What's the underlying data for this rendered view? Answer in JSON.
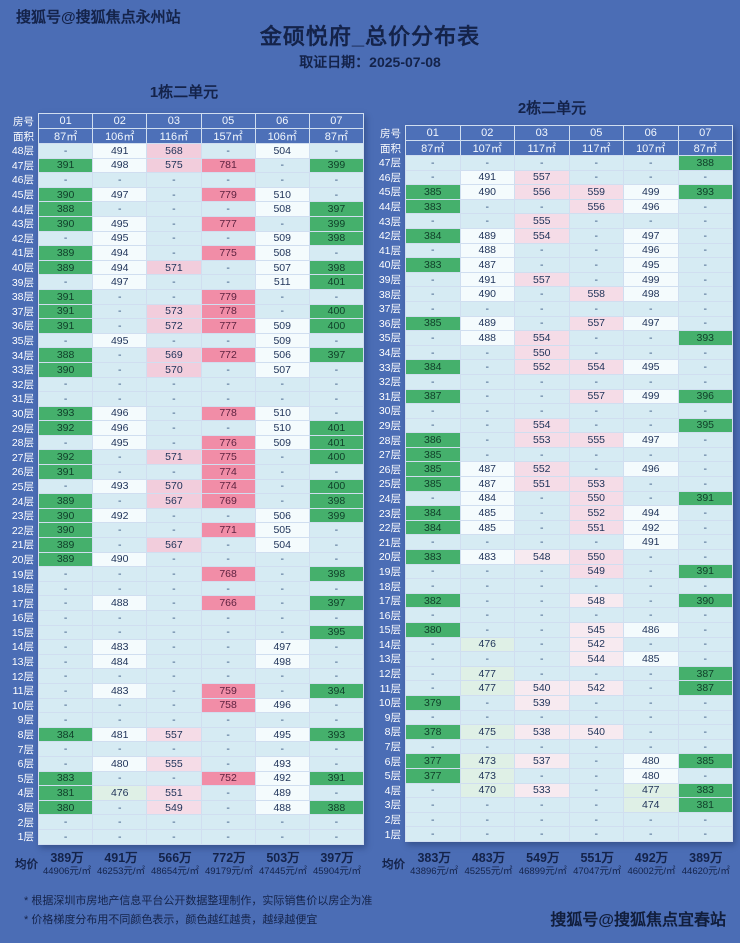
{
  "page": {
    "watermark_top": "搜狐号@搜狐焦点永州站",
    "watermark_bottom": "搜狐号@搜狐焦点宜春站",
    "title": "金硕悦府_总价分布表",
    "date_line": "取证日期：2025-07-08",
    "footnotes": [
      "* 根据深圳市房地产信息平台公开数据整理制作，实际销售价以房企为准",
      "* 价格梯度分布用不同颜色表示，颜色越红越贵，越绿越便宜"
    ]
  },
  "colors": {
    "page_bg": "#4b6db5",
    "text_dark": "#14234a",
    "cell_empty": "#d6ebf3",
    "cell_green": "#45b06c",
    "cell_lightgreen": "#dff0e6",
    "cell_white": "#f4fbfd",
    "cell_pink_pale": "#f7eaf0",
    "cell_pink_light": "#f5dce7",
    "cell_pink_mid": "#f2cddc",
    "cell_rose": "#f18da7"
  },
  "chart_data": [
    {
      "type": "table",
      "title": "1栋二单元",
      "corner_labels": {
        "room": "房号",
        "area": "面积",
        "avg": "均价"
      },
      "rooms": [
        "01",
        "02",
        "03",
        "05",
        "06",
        "07"
      ],
      "areas": [
        "87㎡",
        "106㎡",
        "116㎡",
        "157㎡",
        "106㎡",
        "87㎡"
      ],
      "unit_note": "values are total price in 万元; \"-\" means no data",
      "floors": [
        "48层",
        "47层",
        "46层",
        "45层",
        "44层",
        "43层",
        "42层",
        "41层",
        "40层",
        "39层",
        "38层",
        "37层",
        "36层",
        "35层",
        "34层",
        "33层",
        "32层",
        "31层",
        "30层",
        "29层",
        "28层",
        "27层",
        "26层",
        "25层",
        "24层",
        "23层",
        "22层",
        "21层",
        "20层",
        "19层",
        "18层",
        "17层",
        "16层",
        "15层",
        "14层",
        "13层",
        "12层",
        "11层",
        "10层",
        "9层",
        "8层",
        "7层",
        "6层",
        "5层",
        "4层",
        "3层",
        "2层",
        "1层"
      ],
      "rows": [
        [
          "-",
          "491",
          "568",
          "-",
          "504",
          "-"
        ],
        [
          "391",
          "498",
          "575",
          "781",
          "-",
          "399"
        ],
        [
          "-",
          "-",
          "-",
          "-",
          "-",
          "-"
        ],
        [
          "390",
          "497",
          "-",
          "779",
          "510",
          "-"
        ],
        [
          "388",
          "-",
          "-",
          "-",
          "508",
          "397"
        ],
        [
          "390",
          "495",
          "-",
          "777",
          "-",
          "399"
        ],
        [
          "-",
          "495",
          "-",
          "-",
          "509",
          "398"
        ],
        [
          "389",
          "494",
          "-",
          "775",
          "508",
          "-"
        ],
        [
          "389",
          "494",
          "571",
          "-",
          "507",
          "398"
        ],
        [
          "-",
          "497",
          "-",
          "-",
          "511",
          "401"
        ],
        [
          "391",
          "-",
          "-",
          "779",
          "-",
          "-"
        ],
        [
          "391",
          "-",
          "573",
          "778",
          "-",
          "400"
        ],
        [
          "391",
          "-",
          "572",
          "777",
          "509",
          "400"
        ],
        [
          "-",
          "495",
          "-",
          "-",
          "509",
          "-"
        ],
        [
          "388",
          "-",
          "569",
          "772",
          "506",
          "397"
        ],
        [
          "390",
          "-",
          "570",
          "-",
          "507",
          "-"
        ],
        [
          "-",
          "-",
          "-",
          "-",
          "-",
          "-"
        ],
        [
          "-",
          "-",
          "-",
          "-",
          "-",
          "-"
        ],
        [
          "393",
          "496",
          "-",
          "778",
          "510",
          "-"
        ],
        [
          "392",
          "496",
          "-",
          "-",
          "510",
          "401"
        ],
        [
          "-",
          "495",
          "-",
          "776",
          "509",
          "401"
        ],
        [
          "392",
          "-",
          "571",
          "775",
          "-",
          "400"
        ],
        [
          "391",
          "-",
          "-",
          "774",
          "-",
          "-"
        ],
        [
          "-",
          "493",
          "570",
          "774",
          "-",
          "400"
        ],
        [
          "389",
          "-",
          "567",
          "769",
          "-",
          "398"
        ],
        [
          "390",
          "492",
          "-",
          "-",
          "506",
          "399"
        ],
        [
          "390",
          "-",
          "-",
          "771",
          "505",
          "-"
        ],
        [
          "389",
          "-",
          "567",
          "-",
          "504",
          "-"
        ],
        [
          "389",
          "490",
          "-",
          "-",
          "-",
          "-"
        ],
        [
          "-",
          "-",
          "-",
          "768",
          "-",
          "398"
        ],
        [
          "-",
          "-",
          "-",
          "-",
          "-",
          "-"
        ],
        [
          "-",
          "488",
          "-",
          "766",
          "-",
          "397"
        ],
        [
          "-",
          "-",
          "-",
          "-",
          "-",
          "-"
        ],
        [
          "-",
          "-",
          "-",
          "-",
          "-",
          "395"
        ],
        [
          "-",
          "483",
          "-",
          "-",
          "497",
          "-"
        ],
        [
          "-",
          "484",
          "-",
          "-",
          "498",
          "-"
        ],
        [
          "-",
          "-",
          "-",
          "-",
          "-",
          "-"
        ],
        [
          "-",
          "483",
          "-",
          "759",
          "-",
          "394"
        ],
        [
          "-",
          "-",
          "-",
          "758",
          "496",
          "-"
        ],
        [
          "-",
          "-",
          "-",
          "-",
          "-",
          "-"
        ],
        [
          "384",
          "481",
          "557",
          "-",
          "495",
          "393"
        ],
        [
          "-",
          "-",
          "-",
          "-",
          "-",
          "-"
        ],
        [
          "-",
          "480",
          "555",
          "-",
          "493",
          "-"
        ],
        [
          "383",
          "-",
          "-",
          "752",
          "492",
          "391"
        ],
        [
          "381",
          "476",
          "551",
          "-",
          "489",
          "-"
        ],
        [
          "380",
          "-",
          "549",
          "-",
          "488",
          "388"
        ],
        [
          "-",
          "-",
          "-",
          "-",
          "-",
          "-"
        ],
        [
          "-",
          "-",
          "-",
          "-",
          "-",
          "-"
        ]
      ],
      "avg_wan": [
        "389万",
        "491万",
        "566万",
        "772万",
        "503万",
        "397万"
      ],
      "avg_unit": [
        "44906元/㎡",
        "46253元/㎡",
        "48654元/㎡",
        "49179元/㎡",
        "47445元/㎡",
        "45904元/㎡"
      ]
    },
    {
      "type": "table",
      "title": "2栋二单元",
      "corner_labels": {
        "room": "房号",
        "area": "面积",
        "avg": "均价"
      },
      "rooms": [
        "01",
        "02",
        "03",
        "05",
        "06",
        "07"
      ],
      "areas": [
        "87㎡",
        "107㎡",
        "117㎡",
        "117㎡",
        "107㎡",
        "87㎡"
      ],
      "unit_note": "values are total price in 万元; \"-\" means no data",
      "floors": [
        "47层",
        "46层",
        "45层",
        "44层",
        "43层",
        "42层",
        "41层",
        "40层",
        "39层",
        "38层",
        "37层",
        "36层",
        "35层",
        "34层",
        "33层",
        "32层",
        "31层",
        "30层",
        "29层",
        "28层",
        "27层",
        "26层",
        "25层",
        "24层",
        "23层",
        "22层",
        "21层",
        "20层",
        "19层",
        "18层",
        "17层",
        "16层",
        "15层",
        "14层",
        "13层",
        "12层",
        "11层",
        "10层",
        "9层",
        "8层",
        "7层",
        "6层",
        "5层",
        "4层",
        "3层",
        "2层",
        "1层"
      ],
      "rows": [
        [
          "-",
          "-",
          "-",
          "-",
          "-",
          "388"
        ],
        [
          "-",
          "491",
          "557",
          "-",
          "-",
          "-"
        ],
        [
          "385",
          "490",
          "556",
          "559",
          "499",
          "393"
        ],
        [
          "383",
          "-",
          "-",
          "556",
          "496",
          "-"
        ],
        [
          "-",
          "-",
          "555",
          "-",
          "-",
          "-"
        ],
        [
          "384",
          "489",
          "554",
          "-",
          "497",
          "-"
        ],
        [
          "-",
          "488",
          "-",
          "-",
          "496",
          "-"
        ],
        [
          "383",
          "487",
          "-",
          "-",
          "495",
          "-"
        ],
        [
          "-",
          "491",
          "557",
          "-",
          "499",
          "-"
        ],
        [
          "-",
          "490",
          "-",
          "558",
          "498",
          "-"
        ],
        [
          "-",
          "-",
          "-",
          "-",
          "-",
          "-"
        ],
        [
          "385",
          "489",
          "-",
          "557",
          "497",
          "-"
        ],
        [
          "-",
          "488",
          "554",
          "-",
          "-",
          "393"
        ],
        [
          "-",
          "-",
          "550",
          "-",
          "-",
          "-"
        ],
        [
          "384",
          "-",
          "552",
          "554",
          "495",
          "-"
        ],
        [
          "-",
          "-",
          "-",
          "-",
          "-",
          "-"
        ],
        [
          "387",
          "-",
          "-",
          "557",
          "499",
          "396"
        ],
        [
          "-",
          "-",
          "-",
          "-",
          "-",
          "-"
        ],
        [
          "-",
          "-",
          "554",
          "-",
          "-",
          "395"
        ],
        [
          "386",
          "-",
          "553",
          "555",
          "497",
          "-"
        ],
        [
          "385",
          "-",
          "-",
          "-",
          "-",
          "-"
        ],
        [
          "385",
          "487",
          "552",
          "-",
          "496",
          "-"
        ],
        [
          "385",
          "487",
          "551",
          "553",
          "-",
          "-"
        ],
        [
          "-",
          "484",
          "-",
          "550",
          "-",
          "391"
        ],
        [
          "384",
          "485",
          "-",
          "552",
          "494",
          "-"
        ],
        [
          "384",
          "485",
          "-",
          "551",
          "492",
          "-"
        ],
        [
          "-",
          "-",
          "-",
          "-",
          "491",
          "-"
        ],
        [
          "383",
          "483",
          "548",
          "550",
          "-",
          "-"
        ],
        [
          "-",
          "-",
          "-",
          "549",
          "-",
          "391"
        ],
        [
          "-",
          "-",
          "-",
          "-",
          "-",
          "-"
        ],
        [
          "382",
          "-",
          "-",
          "548",
          "-",
          "390"
        ],
        [
          "-",
          "-",
          "-",
          "-",
          "-",
          "-"
        ],
        [
          "380",
          "-",
          "-",
          "545",
          "486",
          "-"
        ],
        [
          "-",
          "476",
          "-",
          "542",
          "-",
          "-"
        ],
        [
          "-",
          "-",
          "-",
          "544",
          "485",
          "-"
        ],
        [
          "-",
          "477",
          "-",
          "-",
          "-",
          "387"
        ],
        [
          "-",
          "477",
          "540",
          "542",
          "-",
          "387"
        ],
        [
          "379",
          "-",
          "539",
          "-",
          "-",
          "-"
        ],
        [
          "-",
          "-",
          "-",
          "-",
          "-",
          "-"
        ],
        [
          "378",
          "475",
          "538",
          "540",
          "-",
          "-"
        ],
        [
          "-",
          "-",
          "-",
          "-",
          "-",
          "-"
        ],
        [
          "377",
          "473",
          "537",
          "-",
          "480",
          "385"
        ],
        [
          "377",
          "473",
          "-",
          "-",
          "480",
          "-"
        ],
        [
          "-",
          "470",
          "533",
          "-",
          "477",
          "383"
        ],
        [
          "-",
          "-",
          "-",
          "-",
          "474",
          "381"
        ],
        [
          "-",
          "-",
          "-",
          "-",
          "-",
          "-"
        ],
        [
          "-",
          "-",
          "-",
          "-",
          "-",
          "-"
        ]
      ],
      "avg_wan": [
        "383万",
        "483万",
        "549万",
        "551万",
        "492万",
        "389万"
      ],
      "avg_unit": [
        "43896元/㎡",
        "45255元/㎡",
        "46899元/㎡",
        "47047元/㎡",
        "46002元/㎡",
        "44620元/㎡"
      ]
    }
  ]
}
